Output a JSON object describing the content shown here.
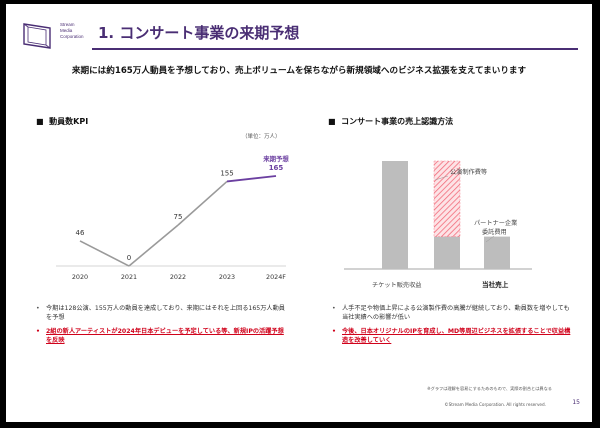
{
  "header": {
    "title": "1. コンサート事業の来期予想",
    "logo_line1": "Stream",
    "logo_line2": "Media",
    "logo_line3": "Corporation"
  },
  "lead": "来期には約165万人動員を予想しており、売上ボリュームを保ちながら新規領域へのビジネス拡張を支えてまいります",
  "left": {
    "section_title": "動員数KPI",
    "unit": "（単位：万人）",
    "forecast_label": "来期予想",
    "bullets": [
      "今期は128公演、155万人の動員を達成しており、来期にはそれを上回る165万人動員を予想",
      "2組の新人アーティストが2024年日本デビューを予定している等、新規IPの活躍予想を反映"
    ]
  },
  "right": {
    "section_title": "コンサート事業の売上認識方法",
    "label_production": "公演制作費等",
    "label_partner_1": "パートナー企業",
    "label_partner_2": "委託費用",
    "label_ticket": "チケット販売収益",
    "label_sales": "当社売上",
    "bullets": [
      "人手不足や物価上昇による公演製作費の高騰が継続しており、動員数を増やしても当社実績への影響が低い",
      "今後、日本オリジナルのIPを育成し、MD等周辺ビジネスを拡張することで収益構造を改善していく"
    ]
  },
  "footer": {
    "footnote": "※グラフは理解を容易にするためのもので、実際の割合とは異なる",
    "copyright": "©Stream Media Corporation. All rights reserved.",
    "page": "15"
  },
  "chart_data": [
    {
      "type": "line",
      "categories": [
        "2020",
        "2021",
        "2022",
        "2023",
        "2024F"
      ],
      "series": [
        {
          "values": [
            46,
            0,
            75,
            155,
            165
          ]
        }
      ],
      "actual_color": "#9a9a9a",
      "forecast_color": "#6b3fa0",
      "ylim": [
        0,
        180
      ]
    },
    {
      "type": "bar",
      "categories": [
        "チケット販売収益",
        "当社売上"
      ],
      "bars": [
        {
          "total": 100,
          "color": "#bdbdbd"
        },
        {
          "base": 30,
          "color": "#bdbdbd",
          "hatched_top": 70,
          "hatch_color": "#f26b7a"
        },
        {
          "total": 30,
          "color": "#bdbdbd"
        }
      ]
    }
  ]
}
